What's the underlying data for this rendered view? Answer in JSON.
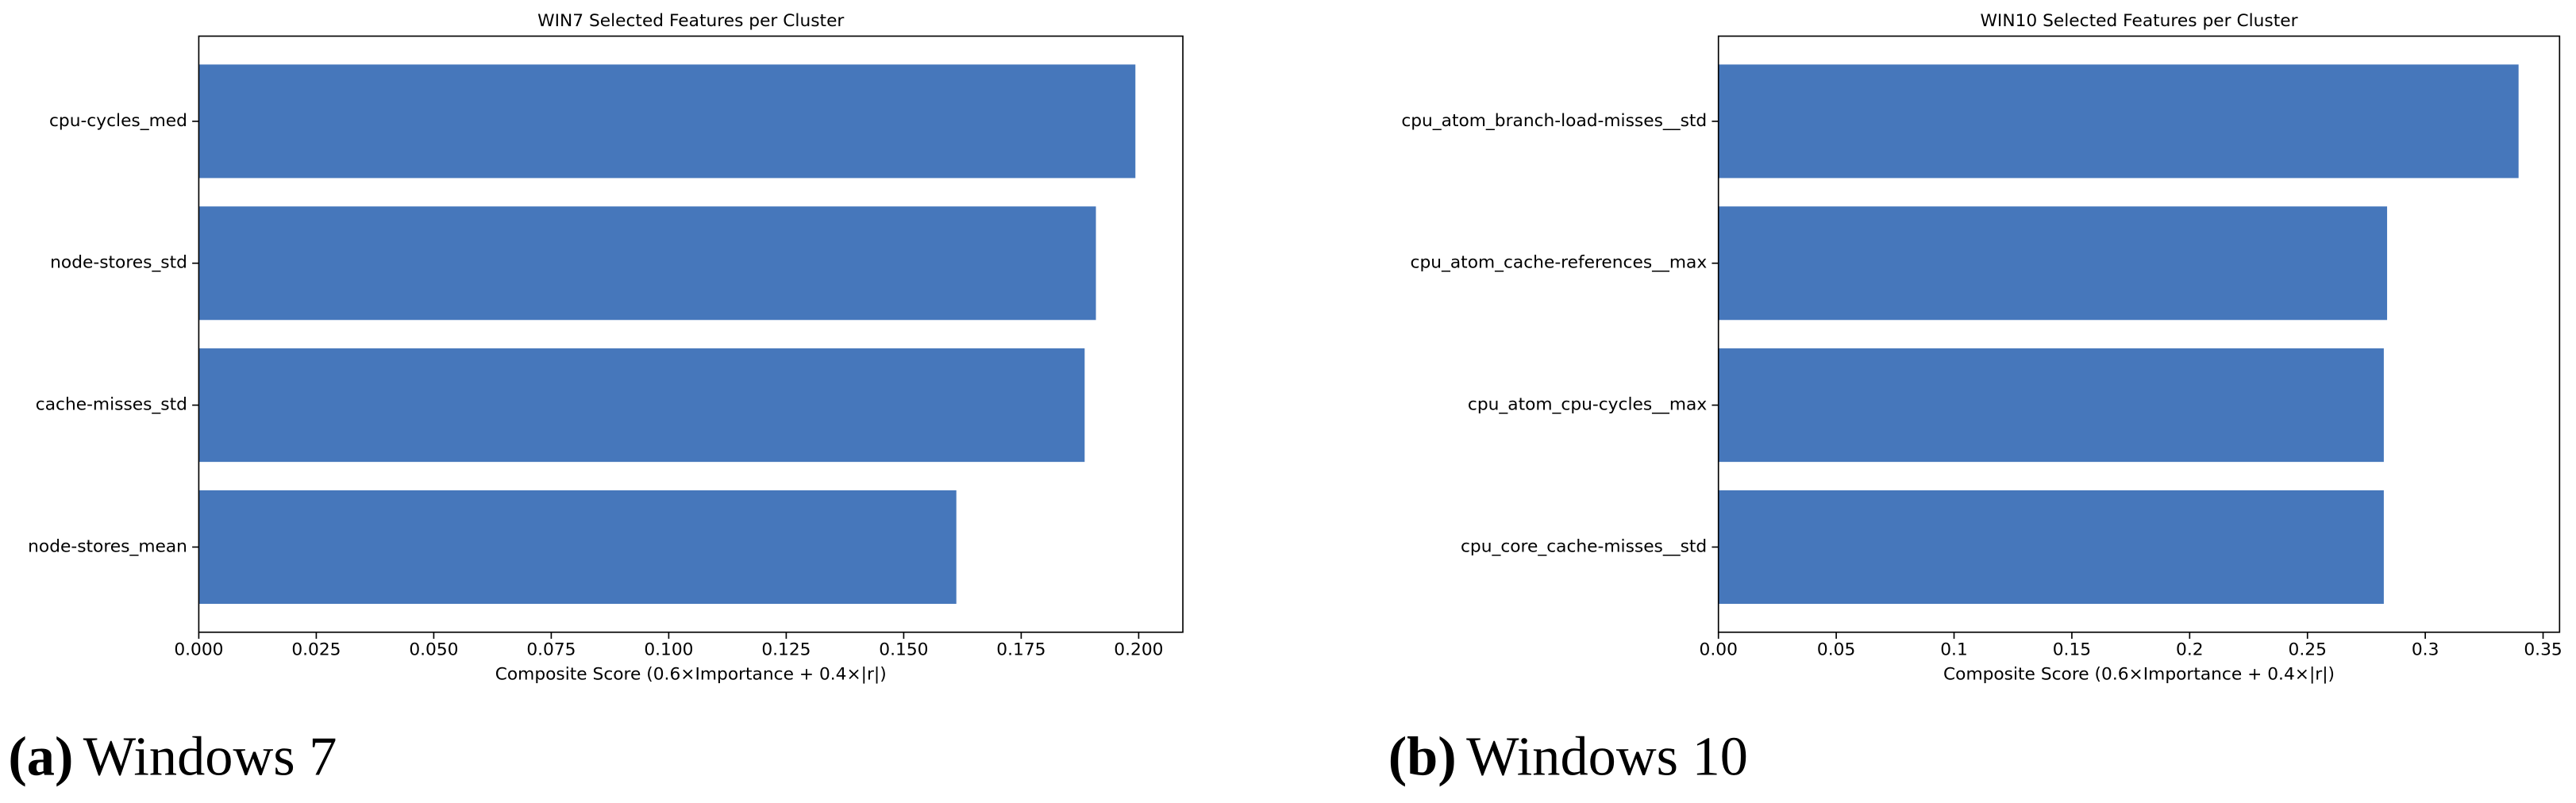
{
  "chart_data": [
    {
      "type": "barh",
      "title": "WIN7 Selected Features per Cluster",
      "xlabel": "Composite Score (0.6×Importance + 0.4×|r|)",
      "categories": [
        "cpu-cycles_med",
        "node-stores_std",
        "cache-misses_std",
        "node-stores_mean"
      ],
      "values": [
        0.1993,
        0.1909,
        0.1885,
        0.1612
      ],
      "color": "#4677bb",
      "xlim": [
        0,
        0.2094
      ],
      "xticks": [
        {
          "value": 0,
          "label": "0.000"
        },
        {
          "value": 0.025,
          "label": "0.025"
        },
        {
          "value": 0.05,
          "label": "0.050"
        },
        {
          "value": 0.075,
          "label": "0.075"
        },
        {
          "value": 0.1,
          "label": "0.100"
        },
        {
          "value": 0.125,
          "label": "0.125"
        },
        {
          "value": 0.15,
          "label": "0.150"
        },
        {
          "value": 0.175,
          "label": "0.175"
        },
        {
          "value": 0.2,
          "label": "0.200"
        }
      ],
      "caption": {
        "label": "(a)",
        "text": "Windows 7"
      }
    },
    {
      "type": "barh",
      "title": "WIN10 Selected Features per Cluster",
      "xlabel": "Composite Score (0.6×Importance + 0.4×|r|)",
      "categories": [
        "cpu_atom_branch-load-misses__std",
        "cpu_atom_cache-references__max",
        "cpu_atom_cpu-cycles__max",
        "cpu_core_cache-misses__std"
      ],
      "values": [
        0.3396,
        0.2838,
        0.2824,
        0.2824
      ],
      "color": "#4677bb",
      "xlim": [
        0,
        0.357
      ],
      "xticks": [
        {
          "value": 0,
          "label": "0.00"
        },
        0.05,
        0.1,
        0.15,
        0.2,
        0.25,
        0.3,
        0.35
      ],
      "caption": {
        "label": "(b)",
        "text": "Windows 10"
      }
    }
  ]
}
